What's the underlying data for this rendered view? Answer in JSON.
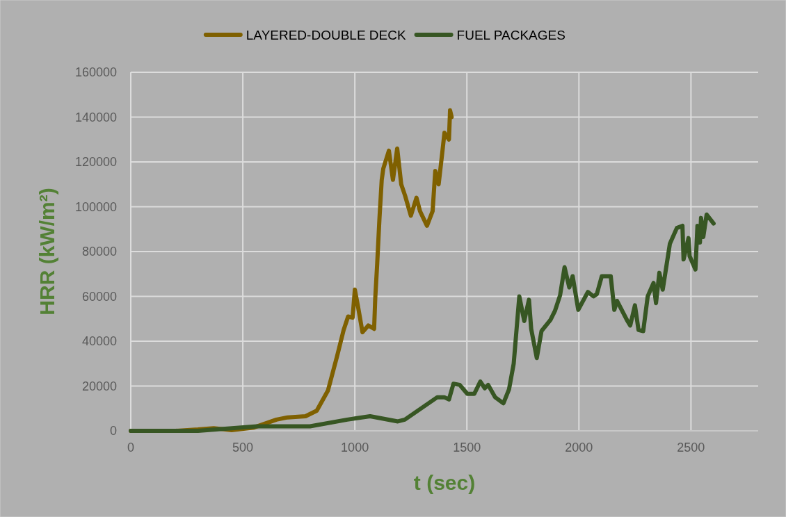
{
  "chart_data": {
    "type": "line",
    "xlabel": "t (sec)",
    "ylabel": "HRR (kW/m²)",
    "xlim": [
      0,
      2800
    ],
    "xticks": [
      0,
      500,
      1000,
      1500,
      2000,
      2500
    ],
    "ylim": [
      0,
      160000
    ],
    "yticks": [
      0,
      20000,
      40000,
      60000,
      80000,
      100000,
      120000,
      140000,
      160000
    ],
    "grid": true,
    "legend": "top",
    "marker": "none",
    "line_style": "solid",
    "series": [
      {
        "name": "LAYERED-DOUBLE DECK",
        "color": "#7f6000",
        "x": [
          0,
          200,
          300,
          370,
          450,
          550,
          650,
          700,
          780,
          830,
          880,
          920,
          950,
          970,
          990,
          1000,
          1015,
          1034,
          1060,
          1086,
          1091,
          1100,
          1110,
          1120,
          1127,
          1152,
          1170,
          1189,
          1207,
          1224,
          1250,
          1275,
          1291,
          1322,
          1347,
          1359,
          1374,
          1390,
          1400,
          1420,
          1425,
          1432
        ],
        "values": [
          0,
          0,
          600,
          1200,
          300,
          1500,
          5000,
          6000,
          6500,
          9000,
          18000,
          33000,
          45000,
          51000,
          50500,
          63000,
          55000,
          44000,
          47000,
          45500,
          59000,
          75000,
          95000,
          112000,
          117000,
          125000,
          112000,
          126000,
          110000,
          105000,
          96000,
          104000,
          98000,
          91500,
          98000,
          116000,
          110000,
          124000,
          133000,
          130000,
          143000,
          140000
        ]
      },
      {
        "name": "FUEL PACKAGES",
        "color": "#375623",
        "x": [
          0,
          300,
          563,
          800,
          966,
          1068,
          1192,
          1223,
          1368,
          1399,
          1420,
          1440,
          1468,
          1502,
          1533,
          1560,
          1580,
          1595,
          1626,
          1663,
          1688,
          1709,
          1734,
          1756,
          1777,
          1787,
          1812,
          1833,
          1873,
          1893,
          1916,
          1936,
          1957,
          1972,
          1997,
          2040,
          2065,
          2080,
          2102,
          2142,
          2158,
          2170,
          2214,
          2229,
          2250,
          2266,
          2287,
          2307,
          2333,
          2344,
          2359,
          2374,
          2406,
          2437,
          2462,
          2467,
          2489,
          2494,
          2520,
          2529,
          2540,
          2545,
          2555,
          2570,
          2601
        ],
        "values": [
          0,
          0,
          2000,
          2000,
          5000,
          6500,
          4200,
          5000,
          15000,
          15000,
          14000,
          21000,
          20500,
          16500,
          16500,
          22000,
          19000,
          20500,
          15000,
          12300,
          18500,
          30000,
          60000,
          49000,
          58500,
          45500,
          32500,
          44500,
          49500,
          53500,
          60500,
          73000,
          64000,
          69000,
          54000,
          62000,
          60000,
          61000,
          69000,
          69000,
          54000,
          58000,
          49500,
          47000,
          56000,
          45000,
          44500,
          60000,
          66000,
          57000,
          70500,
          63000,
          83500,
          90500,
          91500,
          76500,
          86000,
          78000,
          72000,
          91500,
          84000,
          95000,
          86500,
          96500,
          92500
        ]
      }
    ]
  }
}
